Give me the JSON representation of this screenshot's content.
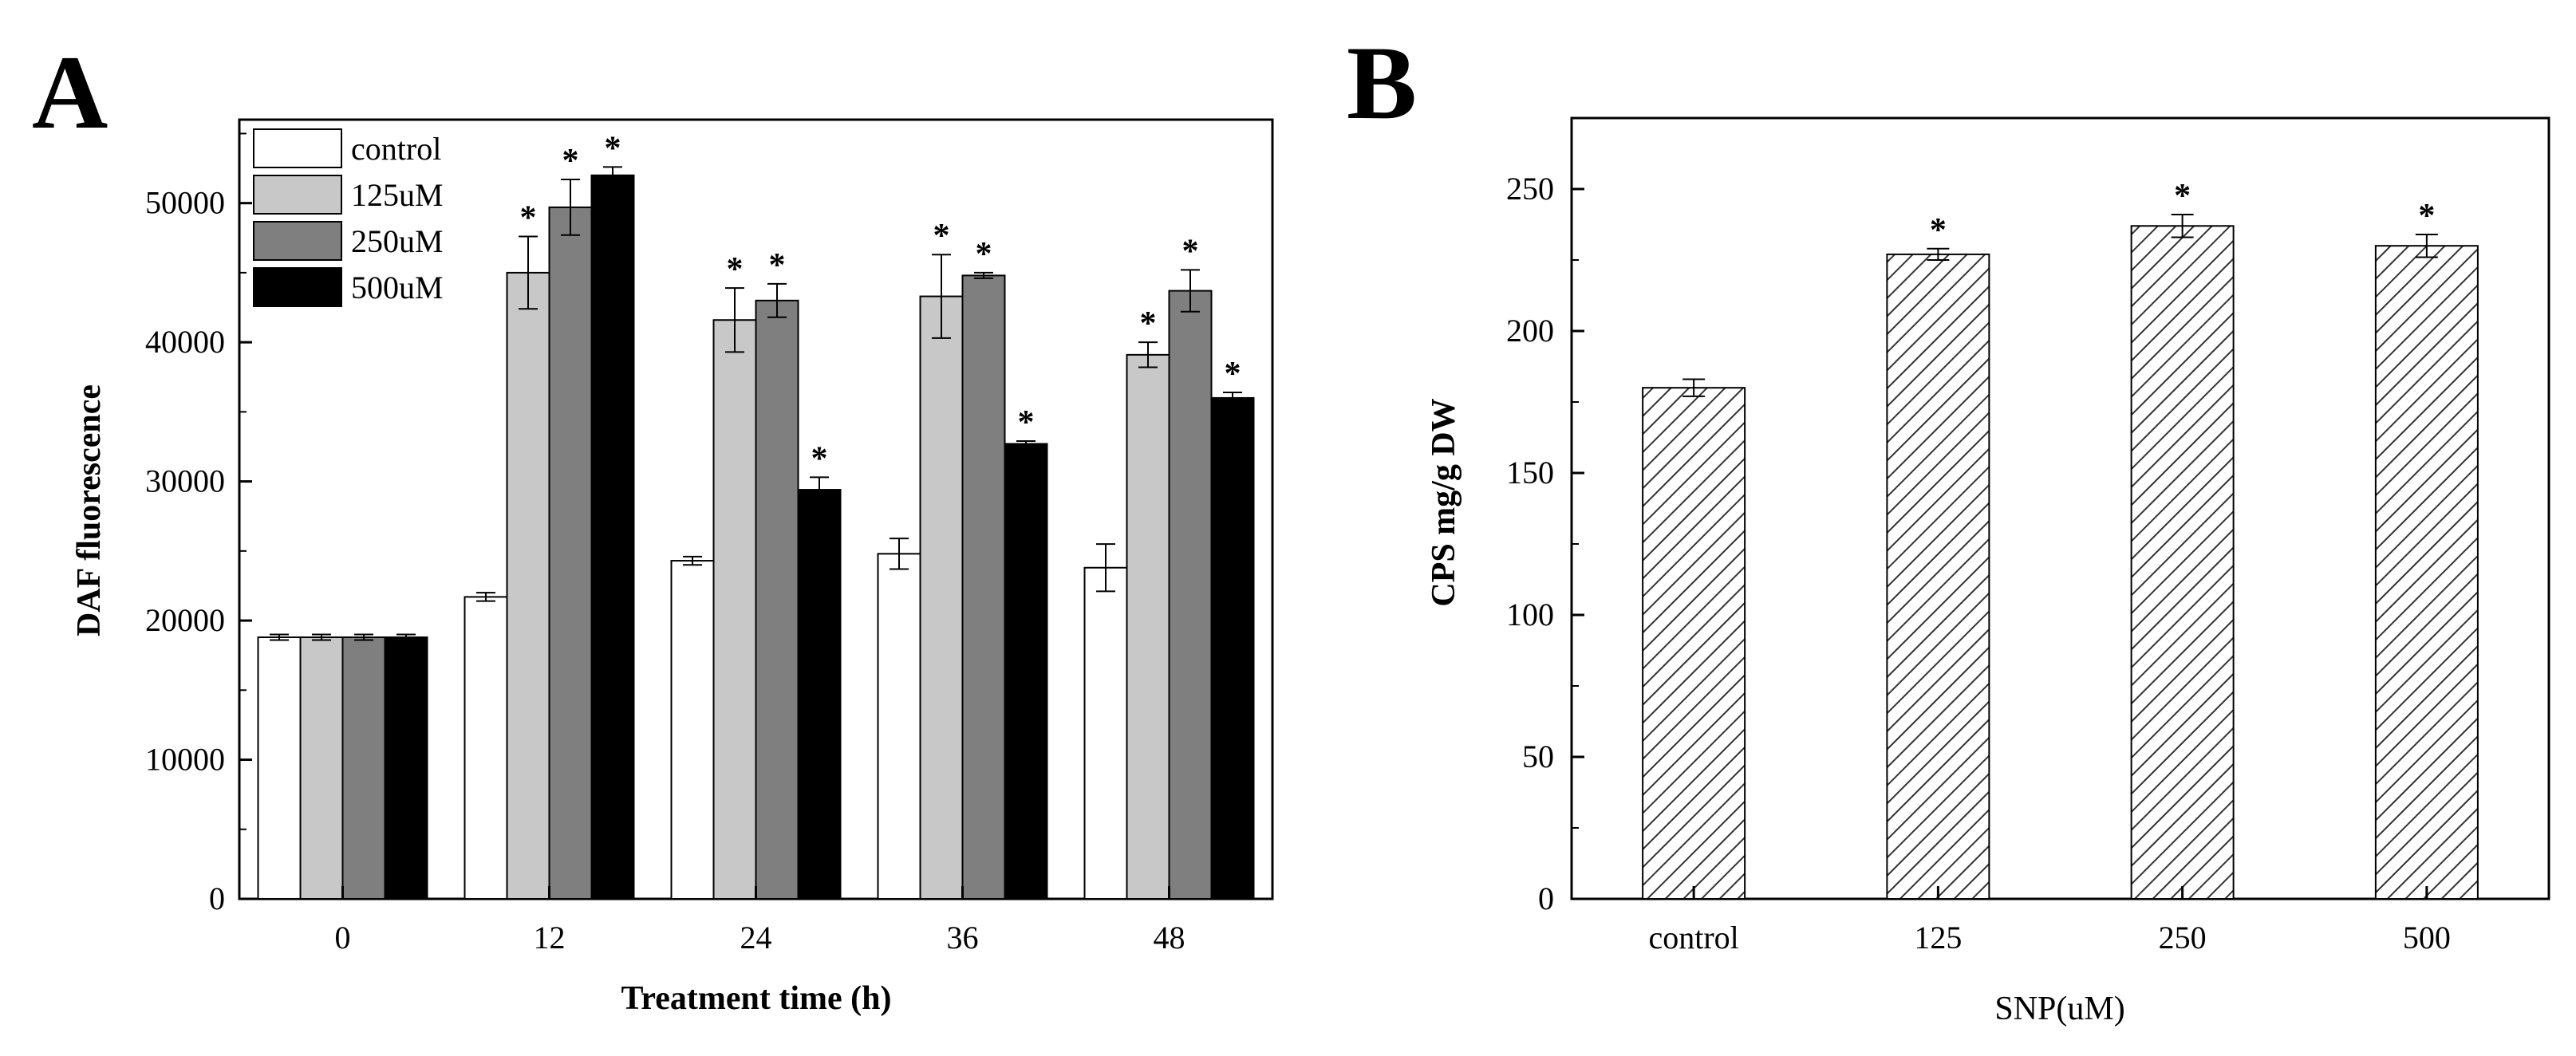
{
  "chart_data": [
    {
      "panel": "A",
      "type": "bar",
      "title": "",
      "xlabel": "Treatment time (h)",
      "ylabel": "DAF fluorescence",
      "categories": [
        "0",
        "12",
        "24",
        "36",
        "48"
      ],
      "ylim": [
        0,
        56000
      ],
      "yticks": [
        "0",
        "10000",
        "20000",
        "30000",
        "40000",
        "50000"
      ],
      "yticks_values": [
        0,
        10000,
        20000,
        30000,
        40000,
        50000
      ],
      "legend_position": "top-left",
      "series": [
        {
          "name": "control",
          "color": "#ffffff",
          "values": [
            18800,
            21700,
            24300,
            24800,
            23800
          ],
          "errors": [
            200,
            300,
            300,
            1100,
            1700
          ],
          "significant": [
            false,
            false,
            false,
            false,
            false
          ]
        },
        {
          "name": "125uM",
          "color": "#c8c8c8",
          "values": [
            18800,
            45000,
            41600,
            43300,
            39100
          ],
          "errors": [
            200,
            2600,
            2300,
            3000,
            900
          ],
          "significant": [
            false,
            true,
            true,
            true,
            true
          ]
        },
        {
          "name": "250uM",
          "color": "#7f7f7f",
          "values": [
            18800,
            49700,
            43000,
            44800,
            43700
          ],
          "errors": [
            200,
            2000,
            1200,
            200,
            1500
          ],
          "significant": [
            false,
            true,
            true,
            true,
            true
          ]
        },
        {
          "name": "500uM",
          "color": "#000000",
          "values": [
            18800,
            52000,
            29400,
            32700,
            36000
          ],
          "errors": [
            200,
            600,
            900,
            200,
            400
          ],
          "significant": [
            false,
            true,
            true,
            true,
            true
          ]
        }
      ],
      "significance_marker": "*"
    },
    {
      "panel": "B",
      "type": "bar",
      "title": "",
      "xlabel": "SNP(uM)",
      "ylabel": "CPS mg/g DW",
      "categories": [
        "control",
        "125",
        "250",
        "500"
      ],
      "ylim": [
        0,
        275
      ],
      "yticks": [
        "0",
        "50",
        "100",
        "150",
        "200",
        "250"
      ],
      "yticks_values": [
        0,
        50,
        100,
        150,
        200,
        250
      ],
      "series": [
        {
          "name": "CPS",
          "pattern": "hatched",
          "values": [
            180,
            227,
            237,
            230
          ],
          "errors": [
            3,
            2,
            4,
            4
          ],
          "significant": [
            false,
            true,
            true,
            true
          ]
        }
      ],
      "significance_marker": "*"
    }
  ]
}
